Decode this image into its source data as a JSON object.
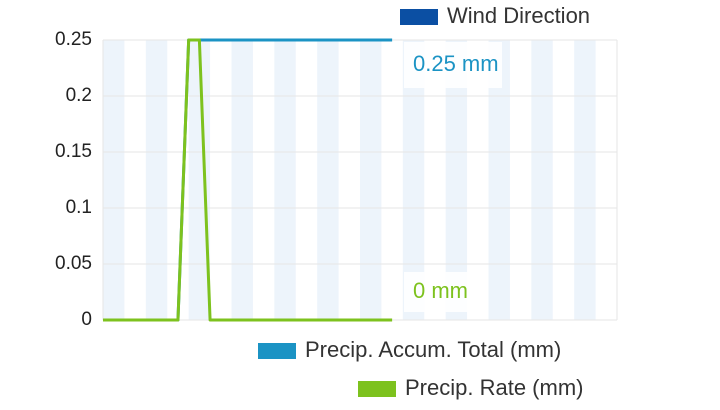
{
  "chart_data": {
    "type": "line",
    "categories": [
      null,
      null,
      null,
      null,
      null,
      null,
      null,
      null,
      null,
      null,
      null,
      null,
      null,
      null,
      null,
      null,
      null,
      null,
      null,
      null,
      null,
      null,
      null,
      null,
      null,
      null,
      null,
      null,
      null,
      null,
      null,
      null,
      null,
      null,
      null,
      null,
      null,
      null,
      null,
      null,
      null,
      null,
      null,
      null,
      null,
      null,
      null,
      null,
      null
    ],
    "series": [
      {
        "name": "Wind Direction",
        "color": "#0b4fa3",
        "values": [
          null,
          null,
          null,
          null,
          null,
          null,
          null,
          null,
          null,
          null,
          null,
          null,
          null,
          null,
          null,
          null,
          null,
          null,
          null,
          null,
          null,
          null,
          null,
          null,
          null,
          null,
          null,
          null,
          null,
          null,
          null,
          null,
          null,
          null,
          null,
          null,
          null,
          null,
          null,
          null,
          null,
          null,
          null,
          null,
          null,
          null,
          null,
          null,
          null
        ]
      },
      {
        "name": "Precip. Accum. Total (mm)",
        "color": "#1b93c4",
        "values": [
          0,
          0,
          0,
          0,
          0,
          0,
          0,
          0,
          0.25,
          0.25,
          0.25,
          0.25,
          0.25,
          0.25,
          0.25,
          0.25,
          0.25,
          0.25,
          0.25,
          0.25,
          0.25,
          0.25,
          0.25,
          0.25,
          0.25,
          0.25,
          0.25,
          0.25,
          null,
          null,
          null,
          null,
          null,
          null,
          null,
          null,
          null,
          null,
          null,
          null,
          null,
          null,
          null,
          null,
          null,
          null,
          null,
          null,
          null
        ]
      },
      {
        "name": "Precip. Rate (mm)",
        "color": "#7dc21e",
        "values": [
          0,
          0,
          0,
          0,
          0,
          0,
          0,
          0,
          0.25,
          0.25,
          0,
          0,
          0,
          0,
          0,
          0,
          0,
          0,
          0,
          0,
          0,
          0,
          0,
          0,
          0,
          0,
          0,
          0,
          null,
          null,
          null,
          null,
          null,
          null,
          null,
          null,
          null,
          null,
          null,
          null,
          null,
          null,
          null,
          null,
          null,
          null,
          null,
          null,
          null
        ]
      }
    ],
    "annotations": [
      {
        "text": "0.25 mm",
        "color": "#1b93c4"
      },
      {
        "text": "0 mm",
        "color": "#7dc21e"
      }
    ],
    "ylim": [
      0,
      0.25
    ],
    "yticks": [
      0,
      0.05,
      0.1,
      0.15,
      0.2,
      0.25
    ],
    "grid": true
  }
}
